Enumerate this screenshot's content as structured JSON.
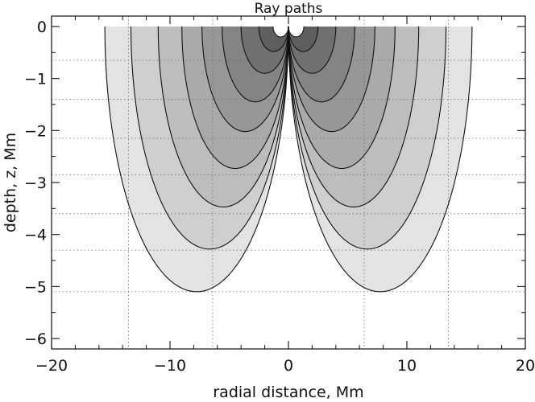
{
  "chart_data": {
    "type": "area",
    "title": "Ray paths",
    "xlabel": "radial distance, Mm",
    "ylabel": "depth, z,  Mm",
    "xlim": [
      -20,
      20
    ],
    "ylim": [
      -6.2,
      0.2
    ],
    "grid": true,
    "x_ticks": [
      -20,
      -10,
      0,
      10,
      20
    ],
    "x_tick_labels": [
      "−20",
      "−10",
      "0",
      "10",
      "20"
    ],
    "y_ticks": [
      0,
      -1,
      -2,
      -3,
      -4,
      -5,
      -6
    ],
    "y_tick_labels": [
      "0",
      "−1",
      "−2",
      "−3",
      "−4",
      "−5",
      "−6"
    ],
    "x_grid": [
      -13.5,
      -6.4,
      6.4,
      13.5
    ],
    "y_grid": [
      -0.65,
      -1.4,
      -2.15,
      -2.85,
      -3.6,
      -4.3,
      -5.1
    ],
    "series": [
      {
        "half_distance": 15.5,
        "max_depth": 5.1,
        "fill": "#e3e3e3"
      },
      {
        "half_distance": 13.3,
        "max_depth": 4.28,
        "fill": "#cfcfcf"
      },
      {
        "half_distance": 11.0,
        "max_depth": 3.47,
        "fill": "#bdbdbd"
      },
      {
        "half_distance": 9.0,
        "max_depth": 2.73,
        "fill": "#aaaaaa"
      },
      {
        "half_distance": 7.3,
        "max_depth": 2.02,
        "fill": "#979797"
      },
      {
        "half_distance": 5.6,
        "max_depth": 1.45,
        "fill": "#848484"
      },
      {
        "half_distance": 4.0,
        "max_depth": 0.9,
        "fill": "#707070"
      },
      {
        "half_distance": 2.5,
        "max_depth": 0.48,
        "fill": "#5e5e5e"
      },
      {
        "half_distance": 1.3,
        "max_depth": 0.2,
        "fill": "#ffffff"
      }
    ]
  }
}
